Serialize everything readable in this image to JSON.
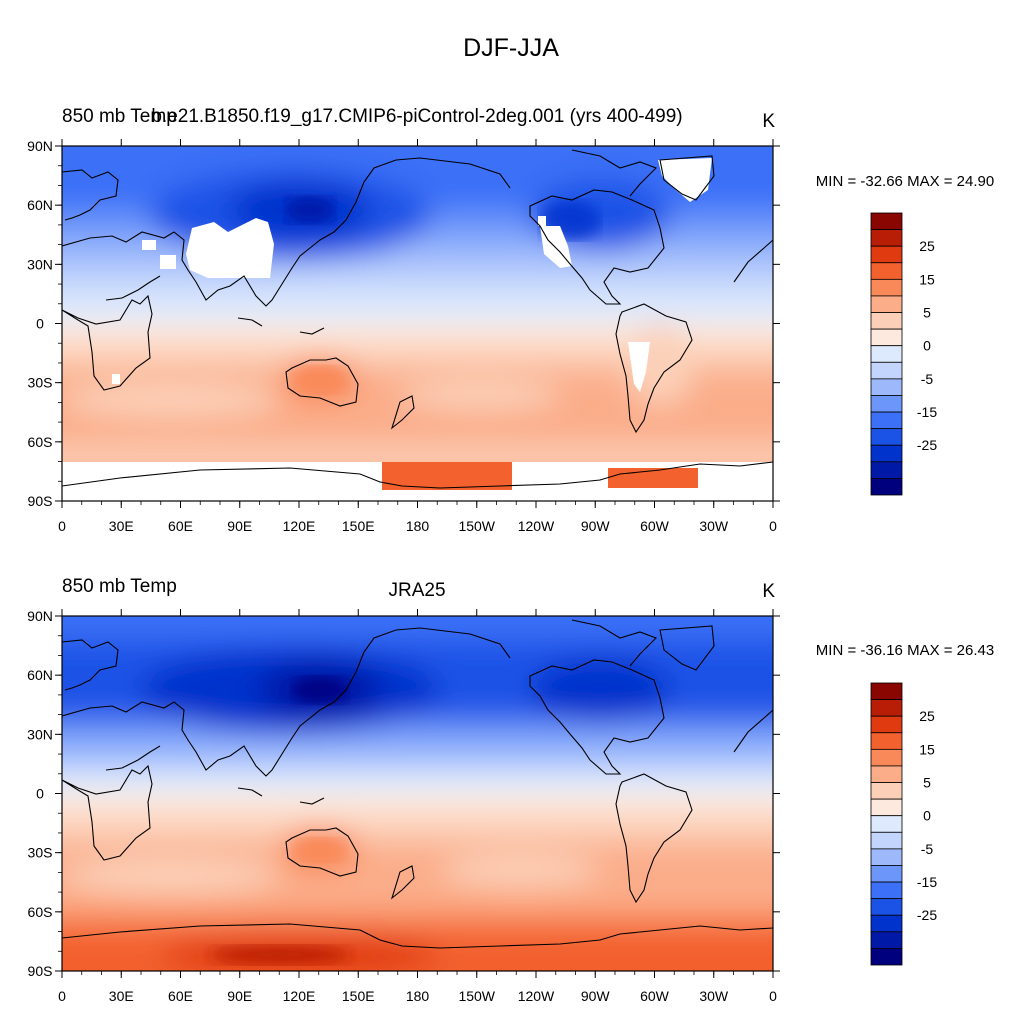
{
  "title": "DJF-JJA",
  "colors": [
    "#00007F",
    "#0019A6",
    "#0033CC",
    "#1A53E6",
    "#3B70F7",
    "#6C96FA",
    "#9DB9FC",
    "#C3D5FC",
    "#DDE9FD",
    "#FDE9DD",
    "#FCD0B8",
    "#FBAD8A",
    "#F98958",
    "#F3612E",
    "#E03B10",
    "#B81E05",
    "#8A0600"
  ],
  "colorbar_labels": [
    "25",
    "15",
    "5",
    "0",
    "-5",
    "-15",
    "-25"
  ],
  "x_ticks": [
    "0",
    "30E",
    "60E",
    "90E",
    "120E",
    "150E",
    "180",
    "150W",
    "120W",
    "90W",
    "60W",
    "30W",
    "0"
  ],
  "y_ticks": [
    "90N",
    "60N",
    "30N",
    "0",
    "30S",
    "60S",
    "90S"
  ],
  "panels": [
    {
      "left_title": "850 mb Temp",
      "case_title": "b.e21.B1850.f19_g17.CMIP6-piControl-2deg.001 (yrs 400-499)",
      "units": "K",
      "minmax": "MIN = -32.66 MAX =  24.90",
      "min": -32.66,
      "max": 24.9,
      "land_mask_missing": true
    },
    {
      "left_title": "850 mb Temp",
      "case_title": "JRA25",
      "units": "K",
      "minmax": "MIN = -36.16 MAX =  26.43",
      "min": -36.16,
      "max": 26.43,
      "land_mask_missing": false
    }
  ]
}
